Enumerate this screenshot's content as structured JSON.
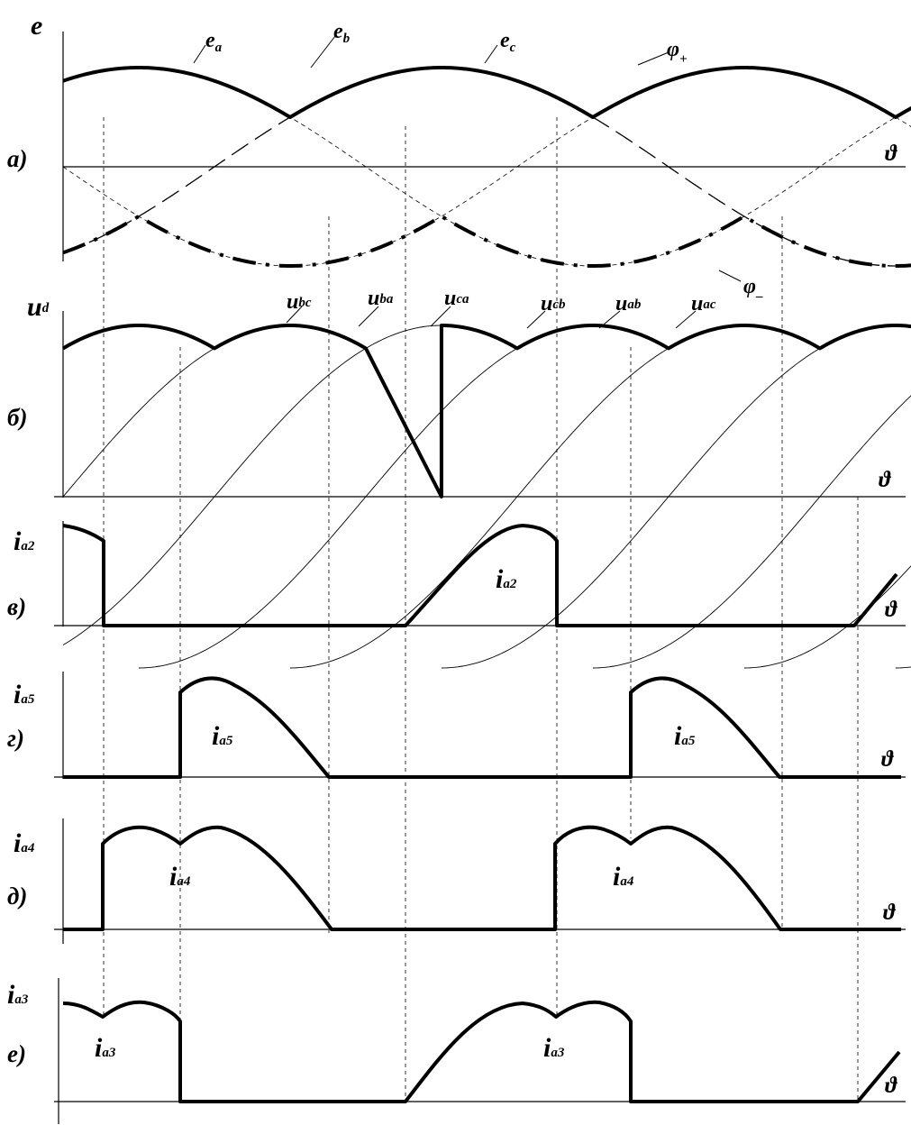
{
  "chart_data": [
    {
      "panel": "a)",
      "type": "line",
      "ylabel": "e",
      "xlabel": "ϑ",
      "x_unit": "rad",
      "x_range": [
        -0.5236,
        10.9956
      ],
      "series": [
        {
          "name": "ea",
          "expr": "cos(x)",
          "style": "bold segments (upper envelope)"
        },
        {
          "name": "eb",
          "expr": "cos(x - 2.0944)",
          "style": "dashed"
        },
        {
          "name": "ec",
          "expr": "cos(x + 2.0944)",
          "style": "bold segments (upper envelope)"
        },
        {
          "name": "φ+",
          "expr": "max(ea, eb, ec)",
          "style": "bold"
        },
        {
          "name": "φ-",
          "expr": "min(ea, eb, ec)",
          "style": "dash-dot bold"
        }
      ],
      "labels": {
        "panel": "а)",
        "y": "e",
        "theta": "ϑ",
        "ea": {
          "base": "e",
          "sub": "a"
        },
        "eb": {
          "base": "e",
          "sub": "b"
        },
        "ec": {
          "base": "e",
          "sub": "c"
        },
        "phi_plus": {
          "base": "φ",
          "sub": "+"
        },
        "phi_minus": {
          "base": "φ",
          "sub": "–"
        }
      }
    },
    {
      "panel": "б)",
      "type": "line",
      "ylabel": "ud",
      "series": [
        {
          "name": "ubc"
        },
        {
          "name": "uba"
        },
        {
          "name": "uca"
        },
        {
          "name": "ucb"
        },
        {
          "name": "uab"
        },
        {
          "name": "uac"
        }
      ],
      "labels": {
        "panel": "б)",
        "y": {
          "base": "u",
          "sub": "d"
        },
        "theta": "ϑ",
        "ubc": {
          "base": "u",
          "sub": "bc"
        },
        "uba": {
          "base": "u",
          "sub": "ba"
        },
        "uca": {
          "base": "u",
          "sub": "ca"
        },
        "ucb": {
          "base": "u",
          "sub": "cb"
        },
        "uab": {
          "base": "u",
          "sub": "ab"
        },
        "uac": {
          "base": "u",
          "sub": "ac"
        }
      }
    },
    {
      "panel": "в)",
      "type": "line",
      "series": [
        {
          "name": "ia2"
        }
      ],
      "labels": {
        "panel": "в)",
        "y": {
          "base": "i",
          "sub": "a2"
        },
        "curve": {
          "base": "i",
          "sub": "a2"
        },
        "theta": "ϑ"
      }
    },
    {
      "panel": "г)",
      "type": "line",
      "series": [
        {
          "name": "ia5"
        }
      ],
      "labels": {
        "panel": "г)",
        "y": {
          "base": "i",
          "sub": "a5"
        },
        "curve": {
          "base": "i",
          "sub": "a5"
        },
        "theta": "ϑ"
      }
    },
    {
      "panel": "д)",
      "type": "line",
      "series": [
        {
          "name": "ia4"
        }
      ],
      "labels": {
        "panel": "д)",
        "y": {
          "base": "i",
          "sub": "a4"
        },
        "curve": {
          "base": "i",
          "sub": "a4"
        },
        "theta": "ϑ"
      }
    },
    {
      "panel": "е)",
      "type": "line",
      "series": [
        {
          "name": "ia3"
        }
      ],
      "labels": {
        "panel": "е)",
        "y": {
          "base": "i",
          "sub": "a3"
        },
        "curve": {
          "base": "i",
          "sub": "a3"
        },
        "theta": "ϑ"
      }
    }
  ],
  "fig": {
    "a": {
      "panel": "а)",
      "e": "e",
      "ea_b": "e",
      "ea_s": "a",
      "eb_b": "e",
      "eb_s": "b",
      "ec_b": "e",
      "ec_s": "c",
      "pp_b": "φ",
      "pp_s": "+",
      "pm_b": "φ",
      "pm_s": "–",
      "theta": "ϑ"
    },
    "b": {
      "panel": "б)",
      "ud_b": "u",
      "ud_s": "d",
      "theta": "ϑ",
      "u_b": "u",
      "s_bc": "bc",
      "s_ba": "ba",
      "s_ca": "ca",
      "s_cb": "cb",
      "s_ab": "ab",
      "s_ac": "ac"
    },
    "c": {
      "panel": "в)",
      "i_b": "i",
      "i_s": "a2",
      "theta": "ϑ"
    },
    "d": {
      "panel": "г)",
      "i_b": "i",
      "i_s": "a5",
      "theta": "ϑ"
    },
    "e": {
      "panel": "д)",
      "i_b": "i",
      "i_s": "a4",
      "theta": "ϑ"
    },
    "f": {
      "panel": "е)",
      "i_b": "i",
      "i_s": "a3",
      "theta": "ϑ"
    }
  }
}
